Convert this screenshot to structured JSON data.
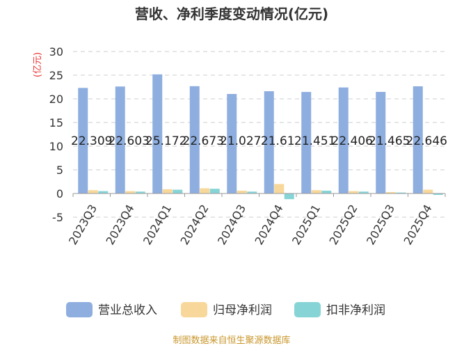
{
  "chart_data": {
    "type": "bar",
    "title": "营收、净利季度变动情况(亿元)",
    "ylabel": "(亿元)",
    "xlabel": "",
    "ylim": [
      -5,
      30
    ],
    "yticks": [
      -5,
      0,
      5,
      10,
      15,
      20,
      25,
      30
    ],
    "grid": true,
    "legend_position": "bottom",
    "categories": [
      "2023Q3",
      "2023Q4",
      "2024Q1",
      "2024Q2",
      "2024Q3",
      "2024Q4",
      "2025Q1",
      "2025Q2",
      "2025Q3",
      "2025Q4"
    ],
    "series": [
      {
        "name": "营业总收入",
        "color": "#8eaee0",
        "values": [
          22.309,
          22.603,
          25.172,
          22.673,
          21.027,
          21.61,
          21.451,
          22.406,
          21.465,
          22.646
        ],
        "labels": [
          "22.309",
          "22.603",
          "25.172",
          "22.673",
          "21.027",
          "21.61",
          "21.451",
          "22.406",
          "21.465",
          "22.646"
        ]
      },
      {
        "name": "归母净利润",
        "color": "#f8d79a",
        "values": [
          0.7,
          0.5,
          0.9,
          1.1,
          0.6,
          2.0,
          0.7,
          0.5,
          0.3,
          0.8
        ]
      },
      {
        "name": "扣非净利润",
        "color": "#86d4d6",
        "values": [
          0.5,
          0.4,
          0.8,
          1.0,
          0.4,
          -1.2,
          0.6,
          0.4,
          0.2,
          -0.3
        ]
      }
    ],
    "source": "制图数据来自恒生聚源数据库"
  }
}
